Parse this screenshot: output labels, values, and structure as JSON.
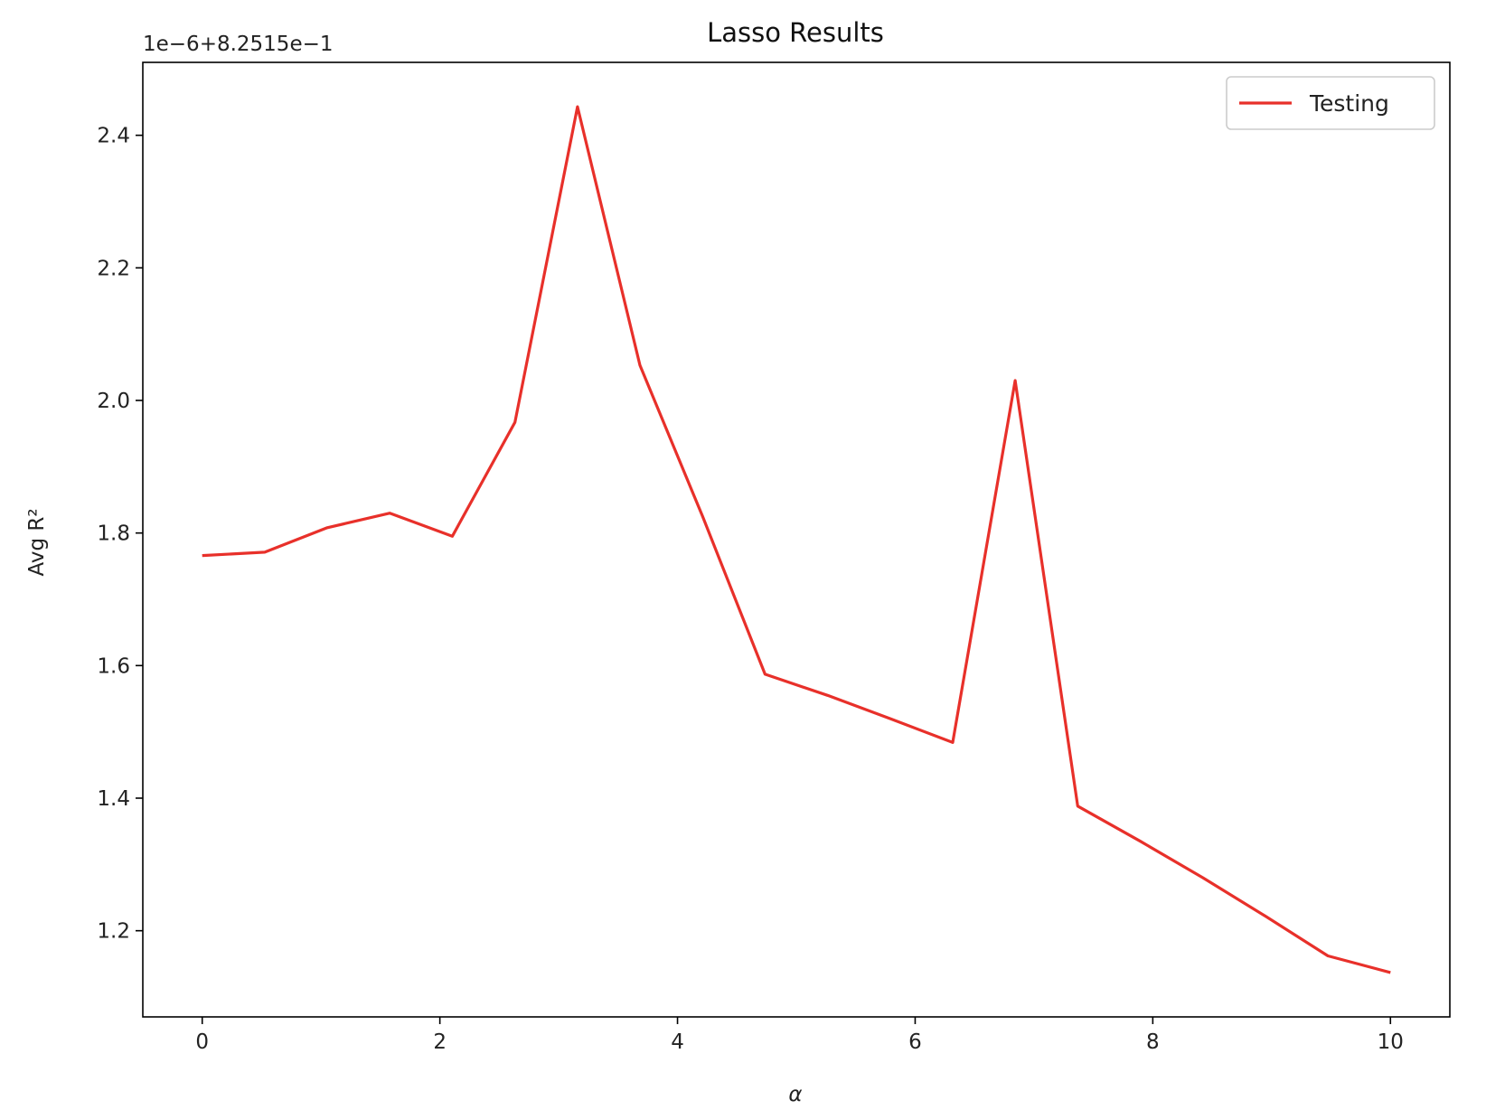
{
  "chart_data": {
    "type": "line",
    "title": "Lasso Results",
    "xlabel": "α",
    "ylabel": "Avg R²",
    "y_offset_text": "1e−6+8.2515e−1",
    "xlim": [
      -0.5,
      10.5
    ],
    "ylim": [
      1.07,
      2.51
    ],
    "xticks": [
      0,
      2,
      4,
      6,
      8,
      10
    ],
    "xtick_labels": [
      "0",
      "2",
      "4",
      "6",
      "8",
      "10"
    ],
    "yticks": [
      1.2,
      1.4,
      1.6,
      1.8,
      2.0,
      2.2,
      2.4
    ],
    "ytick_labels": [
      "1.2",
      "1.4",
      "1.6",
      "1.8",
      "2.0",
      "2.2",
      "2.4"
    ],
    "grid": false,
    "legend_position": "top-right",
    "series": [
      {
        "name": "Testing",
        "color": "#e8302a",
        "x": [
          0,
          0.526,
          1.053,
          1.579,
          2.105,
          2.632,
          3.158,
          3.684,
          4.211,
          4.737,
          5.263,
          5.789,
          6.316,
          6.842,
          7.368,
          7.895,
          8.421,
          8.947,
          9.474,
          10
        ],
        "y": [
          1.766,
          1.771,
          1.808,
          1.83,
          1.795,
          1.967,
          2.443,
          2.053,
          1.825,
          1.587,
          1.555,
          1.52,
          1.484,
          2.03,
          1.388,
          1.335,
          1.28,
          1.222,
          1.162,
          1.137
        ]
      }
    ]
  }
}
